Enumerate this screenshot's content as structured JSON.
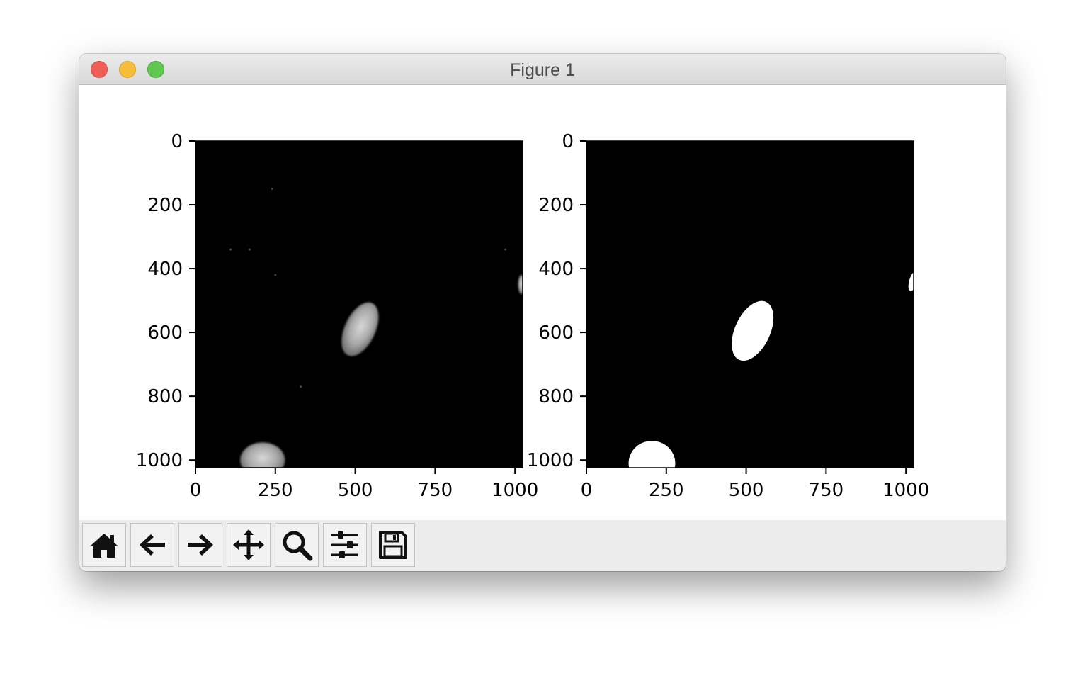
{
  "window": {
    "title": "Figure 1",
    "background": "#ffffff"
  },
  "chart_data": [
    {
      "type": "image",
      "title": "",
      "image_description": "grayscale fluorescence microscopy image of cell nuclei",
      "xlim": [
        0,
        1024
      ],
      "ylim": [
        1024,
        0
      ],
      "xticks": [
        0,
        250,
        500,
        750,
        1000
      ],
      "xtick_labels": [
        "0",
        "250",
        "500",
        "750",
        "1000"
      ],
      "yticks": [
        0,
        200,
        400,
        600,
        800,
        1000
      ],
      "ytick_labels": [
        "0",
        "200",
        "400",
        "600",
        "800",
        "1000"
      ],
      "objects": [
        {
          "name": "nucleus-center",
          "center": [
            515,
            590
          ],
          "radii": [
            48,
            90
          ],
          "rotation_deg": 25
        },
        {
          "name": "nucleus-bottom",
          "center": [
            210,
            1000
          ],
          "radii": [
            70,
            55
          ],
          "rotation_deg": 0
        },
        {
          "name": "nucleus-right-edge",
          "center": [
            1020,
            450
          ],
          "radii": [
            10,
            30
          ],
          "rotation_deg": 0
        }
      ]
    },
    {
      "type": "image",
      "title": "",
      "image_description": "binary segmentation mask of nuclei",
      "xlim": [
        0,
        1024
      ],
      "ylim": [
        1024,
        0
      ],
      "xticks": [
        0,
        250,
        500,
        750,
        1000
      ],
      "xtick_labels": [
        "0",
        "250",
        "500",
        "750",
        "1000"
      ],
      "yticks": [
        0,
        200,
        400,
        600,
        800,
        1000
      ],
      "yticks_labels_note": "",
      "ytick_labels": [
        "0",
        "200",
        "400",
        "600",
        "800",
        "1000"
      ],
      "objects": [
        {
          "name": "mask-center",
          "center": [
            520,
            595
          ],
          "radii": [
            55,
            100
          ],
          "rotation_deg": 25
        },
        {
          "name": "mask-bottom",
          "center": [
            205,
            1010
          ],
          "radii": [
            73,
            70
          ],
          "rotation_deg": 0
        },
        {
          "name": "mask-right-edge",
          "center": [
            1022,
            440
          ],
          "radii": [
            12,
            32
          ],
          "rotation_deg": 15
        }
      ]
    }
  ],
  "toolbar": {
    "tools": [
      {
        "name": "home",
        "icon": "home-icon"
      },
      {
        "name": "back",
        "icon": "arrow-left-icon"
      },
      {
        "name": "forward",
        "icon": "arrow-right-icon"
      },
      {
        "name": "pan",
        "icon": "move-icon"
      },
      {
        "name": "zoom",
        "icon": "magnifier-icon"
      },
      {
        "name": "configure-subplots",
        "icon": "sliders-icon"
      },
      {
        "name": "save",
        "icon": "floppy-disk-icon"
      }
    ]
  }
}
